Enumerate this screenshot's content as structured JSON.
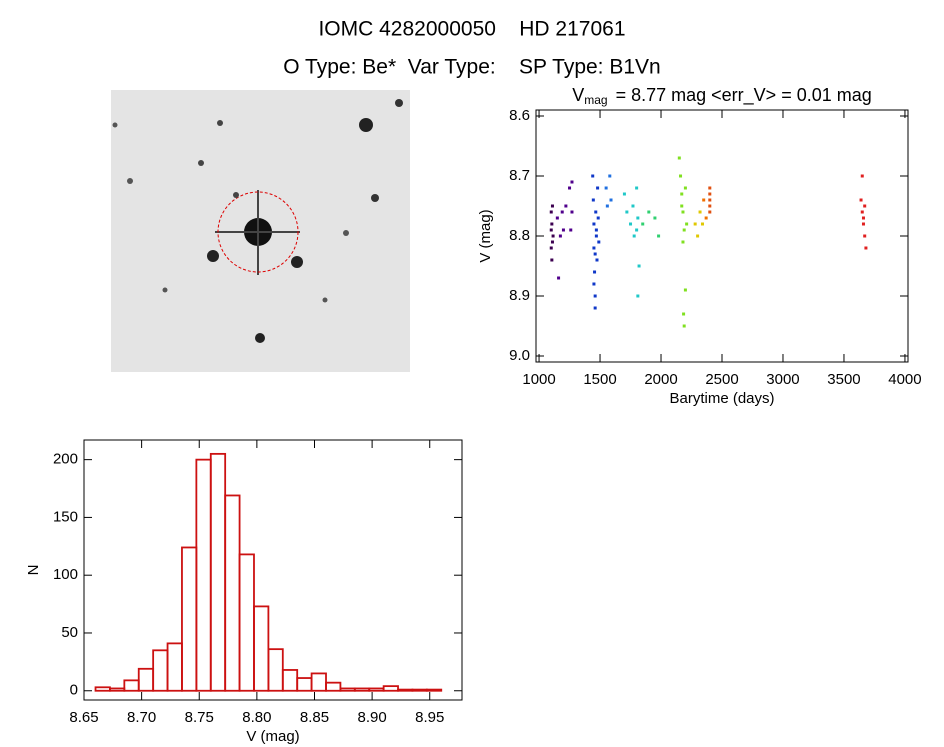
{
  "header": {
    "line1": "IOMC 4282000050    HD 217061",
    "line2": "O Type: Be*  Var Type:    SP Type: B1Vn"
  },
  "chart_data": [
    {
      "type": "scatter",
      "title": "V",
      "title_subscript": "mag",
      "title_suffix": "= 8.77 mag <err_V> = 0.01 mag",
      "xlabel": "Barytime (days)",
      "ylabel": "V (mag)",
      "xlim": [
        975,
        4025
      ],
      "ylim": [
        8.59,
        9.01
      ],
      "y_inverted": true,
      "xticks": [
        1000,
        1500,
        2000,
        2500,
        3000,
        3500,
        4000
      ],
      "yticks": [
        8.6,
        8.7,
        8.8,
        8.9,
        {
          "value": 9,
          "label": "9.0"
        }
      ],
      "series": [
        {
          "color": "#3c0050",
          "x": [
            1100,
            1100,
            1100,
            1105,
            1105,
            1110,
            1110,
            1115
          ],
          "y": [
            8.76,
            8.79,
            8.82,
            8.78,
            8.84,
            8.75,
            8.81,
            8.8
          ]
        },
        {
          "color": "#50008c",
          "x": [
            1150,
            1160,
            1175,
            1190,
            1200,
            1220,
            1250,
            1260,
            1270,
            1270
          ],
          "y": [
            8.77,
            8.87,
            8.8,
            8.76,
            8.79,
            8.75,
            8.72,
            8.79,
            8.71,
            8.76
          ]
        },
        {
          "color": "#1038c8",
          "x": [
            1440,
            1445,
            1450,
            1450,
            1455,
            1460,
            1460,
            1465,
            1470,
            1475,
            1480,
            1485,
            1490,
            1450,
            1460,
            1470
          ],
          "y": [
            8.7,
            8.74,
            8.78,
            8.82,
            8.86,
            8.9,
            8.92,
            8.76,
            8.8,
            8.84,
            8.72,
            8.77,
            8.81,
            8.88,
            8.83,
            8.79
          ]
        },
        {
          "color": "#2070e0",
          "x": [
            1550,
            1560,
            1580,
            1590
          ],
          "y": [
            8.72,
            8.75,
            8.7,
            8.74
          ]
        },
        {
          "color": "#20c8c8",
          "x": [
            1700,
            1720,
            1750,
            1770,
            1780,
            1800,
            1810,
            1820,
            1810,
            1800
          ],
          "y": [
            8.73,
            8.76,
            8.78,
            8.75,
            8.8,
            8.72,
            8.77,
            8.85,
            8.9,
            8.79
          ]
        },
        {
          "color": "#30d070",
          "x": [
            1850,
            1900,
            1950,
            1980
          ],
          "y": [
            8.78,
            8.76,
            8.77,
            8.8
          ]
        },
        {
          "color": "#80e020",
          "x": [
            2150,
            2160,
            2170,
            2180,
            2190,
            2200,
            2210,
            2180,
            2190,
            2170,
            2200,
            2185
          ],
          "y": [
            8.67,
            8.7,
            8.73,
            8.76,
            8.79,
            8.72,
            8.78,
            8.81,
            8.95,
            8.75,
            8.89,
            8.93
          ]
        },
        {
          "color": "#e0c800",
          "x": [
            2280,
            2300,
            2320,
            2340
          ],
          "y": [
            8.78,
            8.8,
            8.76,
            8.78
          ]
        },
        {
          "color": "#f07000",
          "x": [
            2350,
            2370
          ],
          "y": [
            8.74,
            8.77
          ]
        },
        {
          "color": "#e05010",
          "x": [
            2400,
            2400,
            2400,
            2400,
            2400
          ],
          "y": [
            8.72,
            8.74,
            8.76,
            8.75,
            8.73
          ]
        },
        {
          "color": "#e02020",
          "x": [
            3640,
            3650,
            3660,
            3670,
            3680,
            3650,
            3660,
            3670
          ],
          "y": [
            8.74,
            8.76,
            8.78,
            8.8,
            8.82,
            8.7,
            8.77,
            8.75
          ]
        }
      ]
    },
    {
      "type": "histogram",
      "xlabel": "V (mag)",
      "ylabel": "N",
      "color": "#cc1111",
      "bins": [
        8.66,
        8.6725,
        8.685,
        8.6975,
        8.71,
        8.7225,
        8.735,
        8.7475,
        8.76,
        8.7725,
        8.785,
        8.7975,
        8.81,
        8.8225,
        8.835,
        8.8475,
        8.86,
        8.8725,
        8.885,
        8.8975,
        8.91,
        8.9225,
        8.935,
        8.9475,
        8.96
      ],
      "values": [
        3,
        2,
        9,
        19,
        35,
        41,
        124,
        200,
        205,
        169,
        118,
        73,
        36,
        18,
        11,
        15,
        7,
        2,
        2,
        2,
        4,
        1,
        1,
        1
      ],
      "xlim": [
        8.65,
        8.978
      ],
      "ylim": [
        -8,
        217
      ],
      "xticks": [
        8.65,
        {
          "value": 8.7,
          "label": "8.70"
        },
        8.75,
        {
          "value": 8.8,
          "label": "8.80"
        },
        8.85,
        {
          "value": 8.9,
          "label": "8.90"
        },
        8.95
      ],
      "yticks": [
        0,
        50,
        100,
        150,
        200
      ]
    }
  ]
}
